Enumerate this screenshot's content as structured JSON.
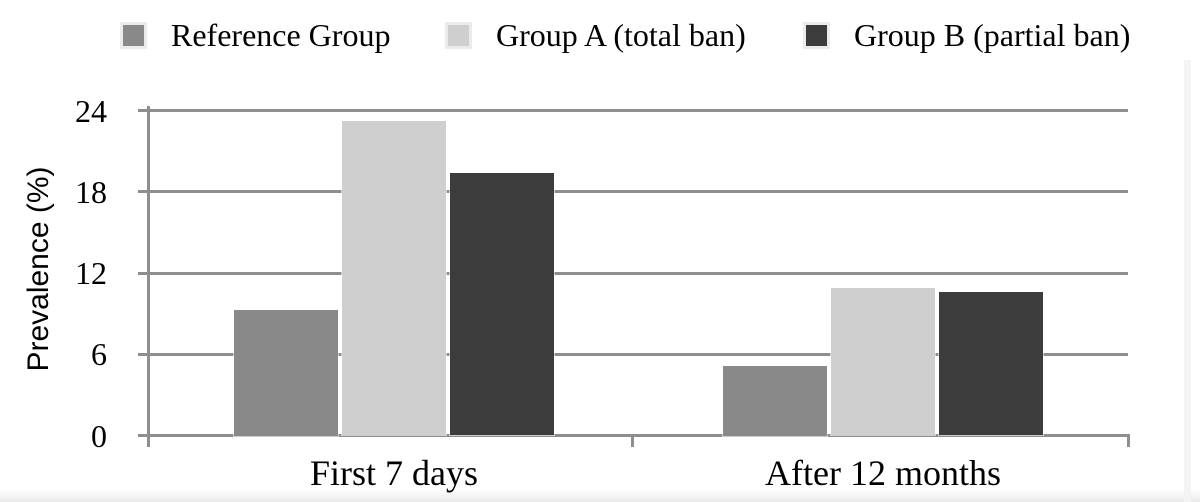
{
  "legend": {
    "items": [
      {
        "label": "Reference Group",
        "color": "#898989"
      },
      {
        "label": "Group A (total ban)",
        "color": "#cfcfcf"
      },
      {
        "label": "Group B (partial ban)",
        "color": "#3c3c3c"
      }
    ]
  },
  "chart_data": {
    "type": "bar",
    "title": "",
    "xlabel": "",
    "ylabel": "Prevalence (%)",
    "categories": [
      "First 7 days",
      "After 12 months"
    ],
    "series": [
      {
        "name": "Reference Group",
        "color": "#898989",
        "values": [
          9.3,
          5.1
        ]
      },
      {
        "name": "Group A (total ban)",
        "color": "#cfcfcf",
        "values": [
          23.2,
          10.9
        ]
      },
      {
        "name": "Group B (partial ban)",
        "color": "#3c3c3c",
        "values": [
          19.4,
          10.6
        ]
      }
    ],
    "yticks": [
      0,
      6,
      12,
      18,
      24
    ],
    "ylim": [
      0,
      24
    ],
    "grid": true,
    "legend_position": "top",
    "colors": {
      "axis": "#8e8e8e",
      "gridline": "#8e8e8e",
      "text": "#000000",
      "background": "#ffffff"
    }
  }
}
